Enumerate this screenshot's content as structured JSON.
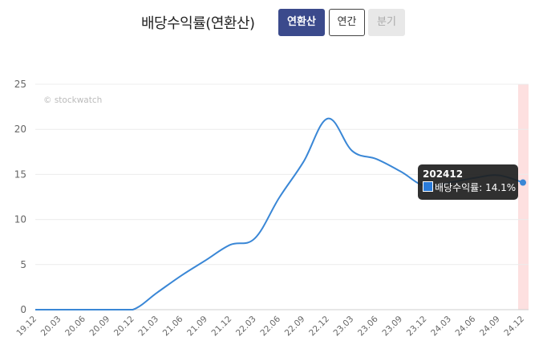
{
  "header": {
    "title": "배당수익률(연환산)",
    "buttons": [
      {
        "label": "연환산",
        "state": "active"
      },
      {
        "label": "연간",
        "state": "normal"
      },
      {
        "label": "분기",
        "state": "disabled"
      }
    ]
  },
  "watermark": "© stockwatch",
  "tooltip": {
    "title": "202412",
    "series_label": "배당수익률",
    "value_text": "14.1%"
  },
  "colors": {
    "line": "#3a87d6",
    "highlight_band": "#fde0e0",
    "button_active": "#3b4a8c"
  },
  "chart_data": {
    "type": "line",
    "x_tick_labels": [
      "19.12",
      "20.03",
      "20.06",
      "20.09",
      "20.12",
      "21.03",
      "21.06",
      "21.09",
      "21.12",
      "22.03",
      "22.06",
      "22.09",
      "22.12",
      "23.03",
      "23.06",
      "23.09",
      "23.12",
      "24.03",
      "24.06",
      "24.09",
      "24.12"
    ],
    "series": [
      {
        "name": "배당수익률",
        "values": [
          0,
          0,
          0,
          0,
          0,
          1.9,
          3.8,
          5.5,
          7.2,
          7.9,
          12.4,
          16.4,
          21.2,
          17.6,
          16.7,
          15.3,
          13.7,
          14.1,
          14.6,
          14.9,
          14.1
        ]
      }
    ],
    "ylim": [
      0,
      25
    ],
    "yticks": [
      0,
      5,
      10,
      15,
      20,
      25
    ],
    "grid": true,
    "highlight_index": 20,
    "legend": "none"
  }
}
